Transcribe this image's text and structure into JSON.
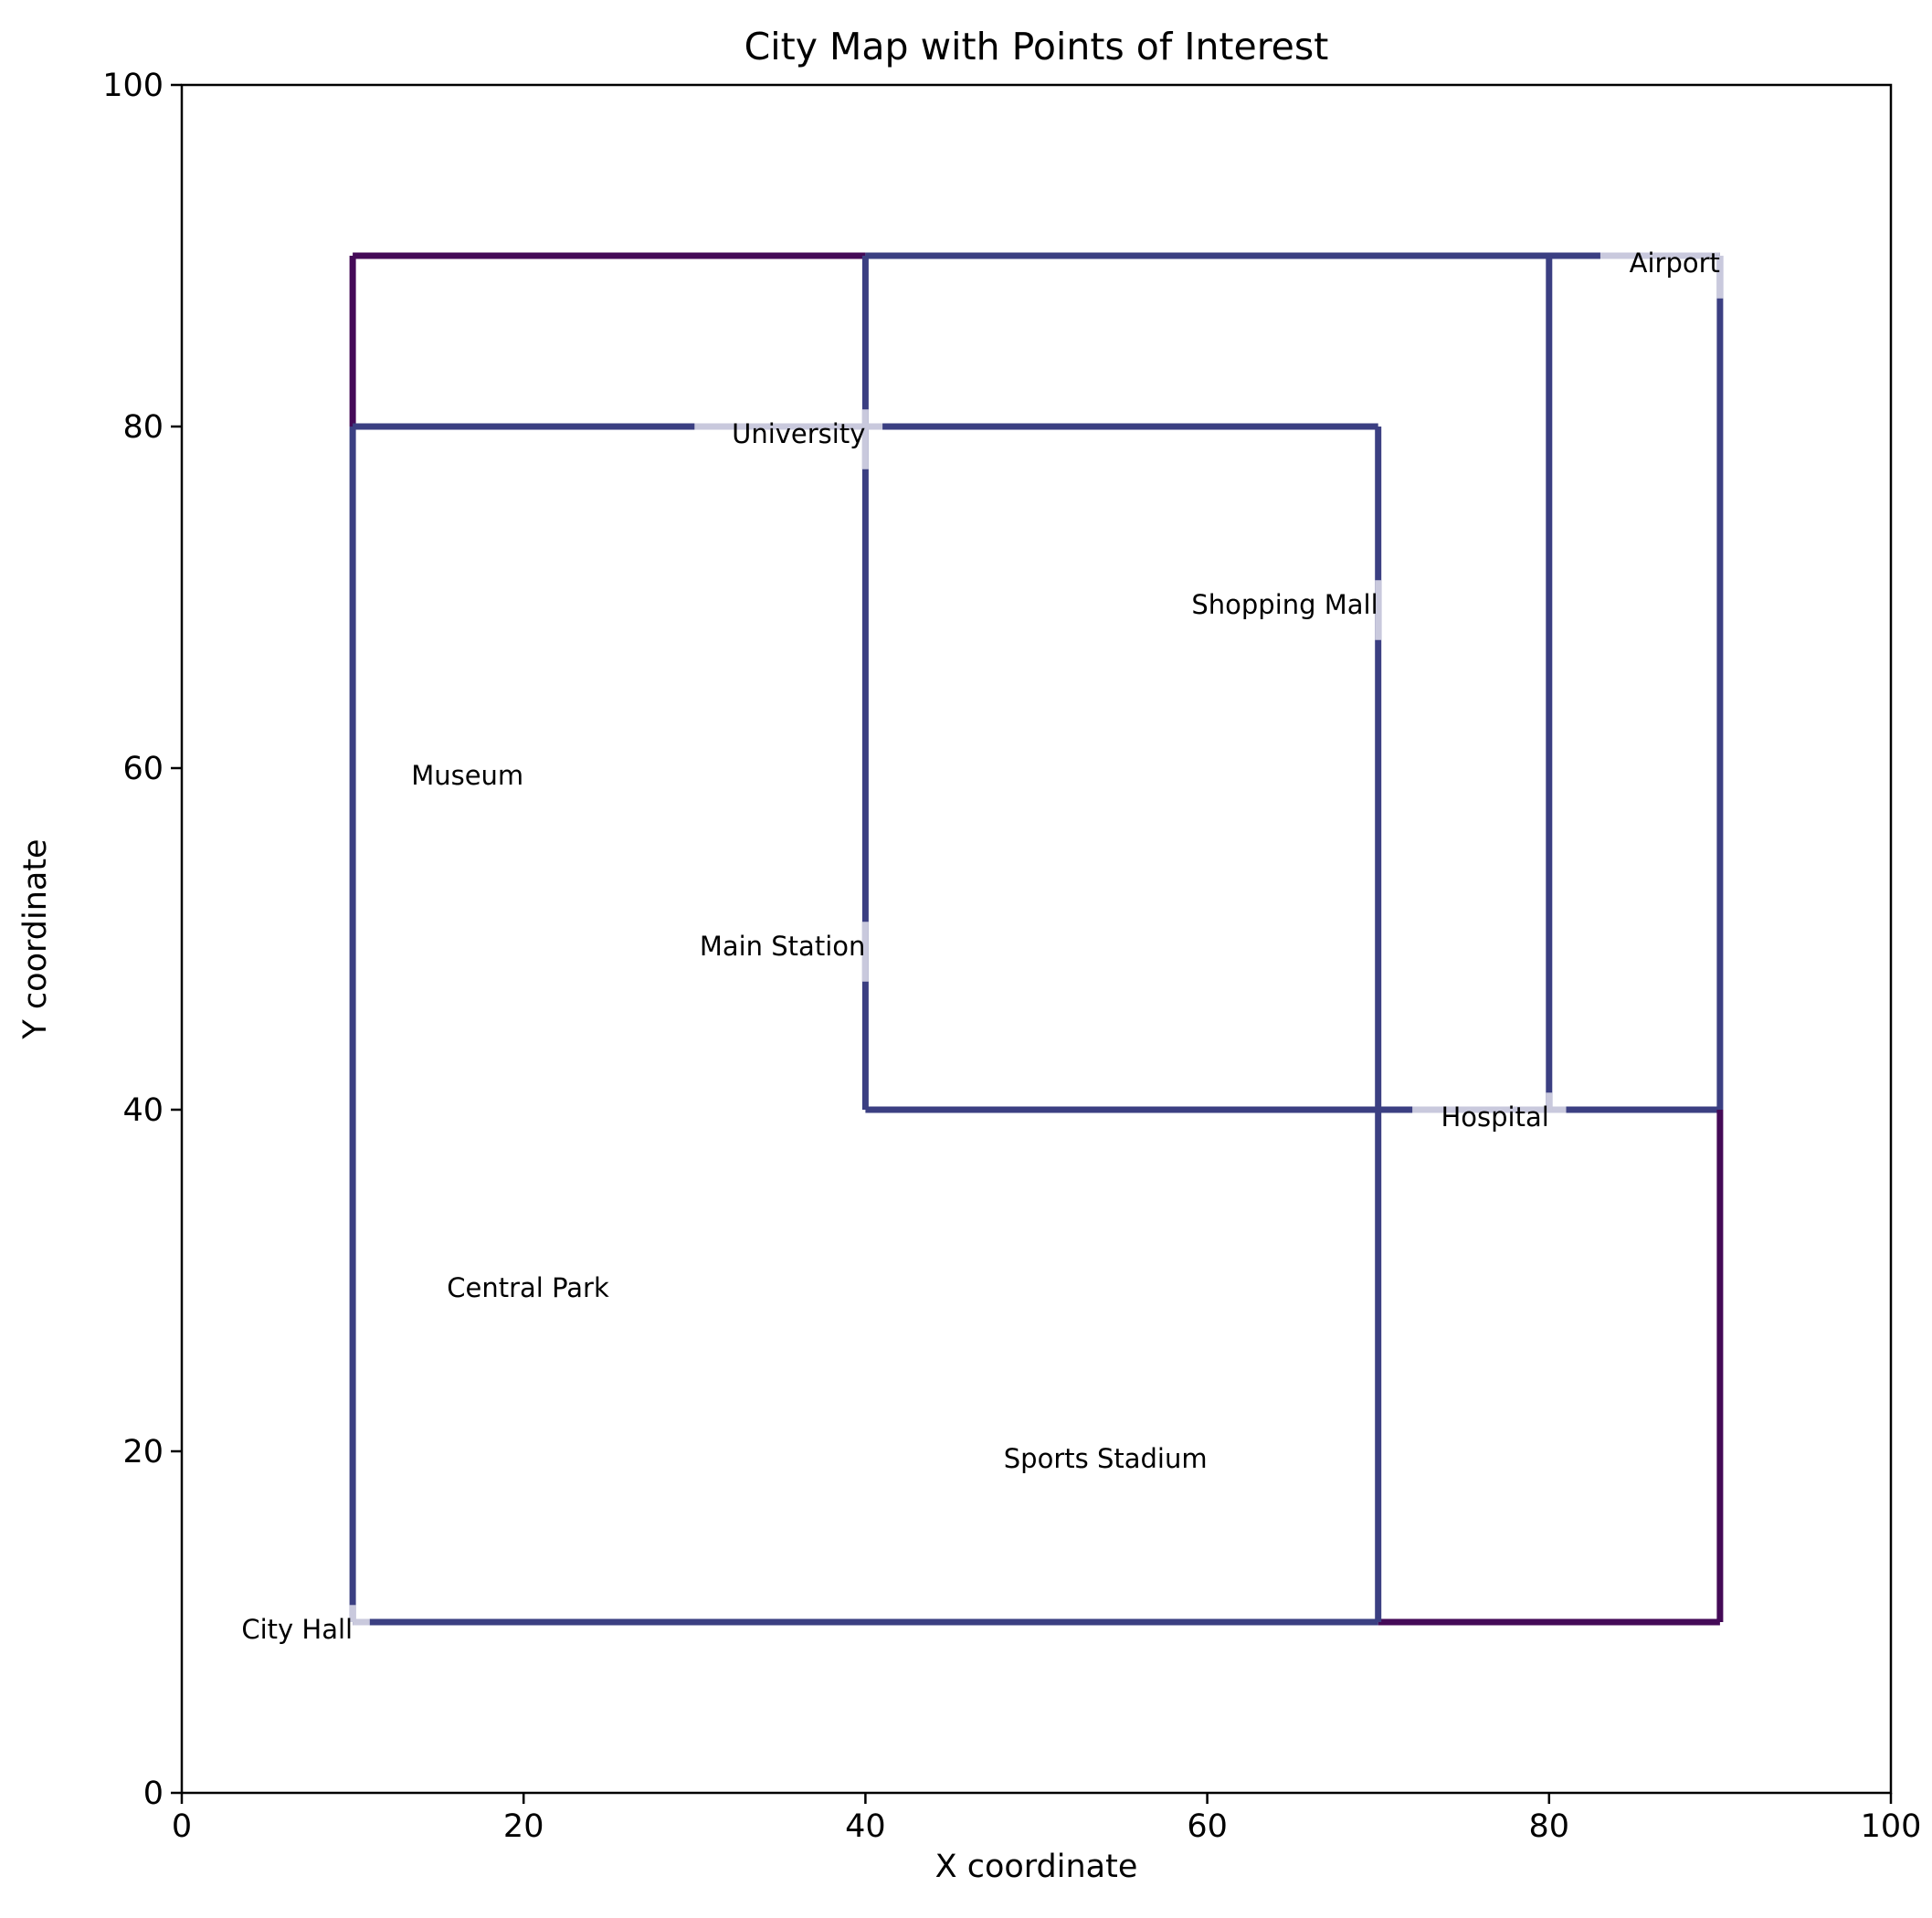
{
  "chart_data": {
    "type": "line",
    "title": "City Map with Points of Interest",
    "xlabel": "X coordinate",
    "ylabel": "Y coordinate",
    "xlim": [
      0,
      100
    ],
    "ylim": [
      0,
      100
    ],
    "xticks": [
      0,
      20,
      40,
      60,
      80,
      100
    ],
    "yticks": [
      0,
      20,
      40,
      60,
      80,
      100
    ],
    "grid": false,
    "colors": {
      "road_primary": "#3b3f82",
      "road_secondary": "#440a57",
      "poi_highlight": "#c9c9dd"
    },
    "points_of_interest": [
      {
        "name": "City Hall",
        "x": 10,
        "y": 10
      },
      {
        "name": "Central Park",
        "x": 25,
        "y": 30
      },
      {
        "name": "Main Station",
        "x": 40,
        "y": 50
      },
      {
        "name": "Shopping Mall",
        "x": 70,
        "y": 70
      },
      {
        "name": "Airport",
        "x": 90,
        "y": 90
      },
      {
        "name": "University",
        "x": 40,
        "y": 80
      },
      {
        "name": "Hospital",
        "x": 80,
        "y": 40
      },
      {
        "name": "Sports Stadium",
        "x": 60,
        "y": 20
      },
      {
        "name": "Museum",
        "x": 20,
        "y": 60
      }
    ],
    "roads": [
      {
        "x": [
          10,
          70
        ],
        "y": [
          10,
          10
        ],
        "class": "primary"
      },
      {
        "x": [
          70,
          90
        ],
        "y": [
          10,
          10
        ],
        "class": "secondary"
      },
      {
        "x": [
          10,
          10
        ],
        "y": [
          10,
          80
        ],
        "class": "primary"
      },
      {
        "x": [
          10,
          10
        ],
        "y": [
          80,
          90
        ],
        "class": "secondary"
      },
      {
        "x": [
          10,
          40
        ],
        "y": [
          90,
          90
        ],
        "class": "secondary"
      },
      {
        "x": [
          10,
          70
        ],
        "y": [
          80,
          80
        ],
        "class": "primary"
      },
      {
        "x": [
          40,
          90
        ],
        "y": [
          90,
          90
        ],
        "class": "primary"
      },
      {
        "x": [
          40,
          40
        ],
        "y": [
          40,
          90
        ],
        "class": "primary"
      },
      {
        "x": [
          70,
          70
        ],
        "y": [
          10,
          80
        ],
        "class": "primary"
      },
      {
        "x": [
          80,
          80
        ],
        "y": [
          40,
          90
        ],
        "class": "primary"
      },
      {
        "x": [
          40,
          90
        ],
        "y": [
          40,
          40
        ],
        "class": "primary"
      },
      {
        "x": [
          90,
          90
        ],
        "y": [
          40,
          90
        ],
        "class": "primary"
      },
      {
        "x": [
          90,
          90
        ],
        "y": [
          10,
          40
        ],
        "class": "secondary"
      }
    ],
    "highlights": [
      {
        "x": [
          10,
          11
        ],
        "y": [
          10,
          10
        ]
      },
      {
        "x": [
          10,
          10
        ],
        "y": [
          10,
          11
        ]
      },
      {
        "x": [
          30,
          41
        ],
        "y": [
          80,
          80
        ]
      },
      {
        "x": [
          40,
          40
        ],
        "y": [
          77.5,
          81
        ]
      },
      {
        "x": [
          70,
          70
        ],
        "y": [
          67.5,
          71
        ]
      },
      {
        "x": [
          40,
          40
        ],
        "y": [
          47.5,
          51
        ]
      },
      {
        "x": [
          72,
          81
        ],
        "y": [
          40,
          40
        ]
      },
      {
        "x": [
          80,
          80
        ],
        "y": [
          40,
          41
        ]
      },
      {
        "x": [
          83,
          90
        ],
        "y": [
          90,
          90
        ]
      },
      {
        "x": [
          90,
          90
        ],
        "y": [
          87.5,
          90
        ]
      }
    ]
  }
}
